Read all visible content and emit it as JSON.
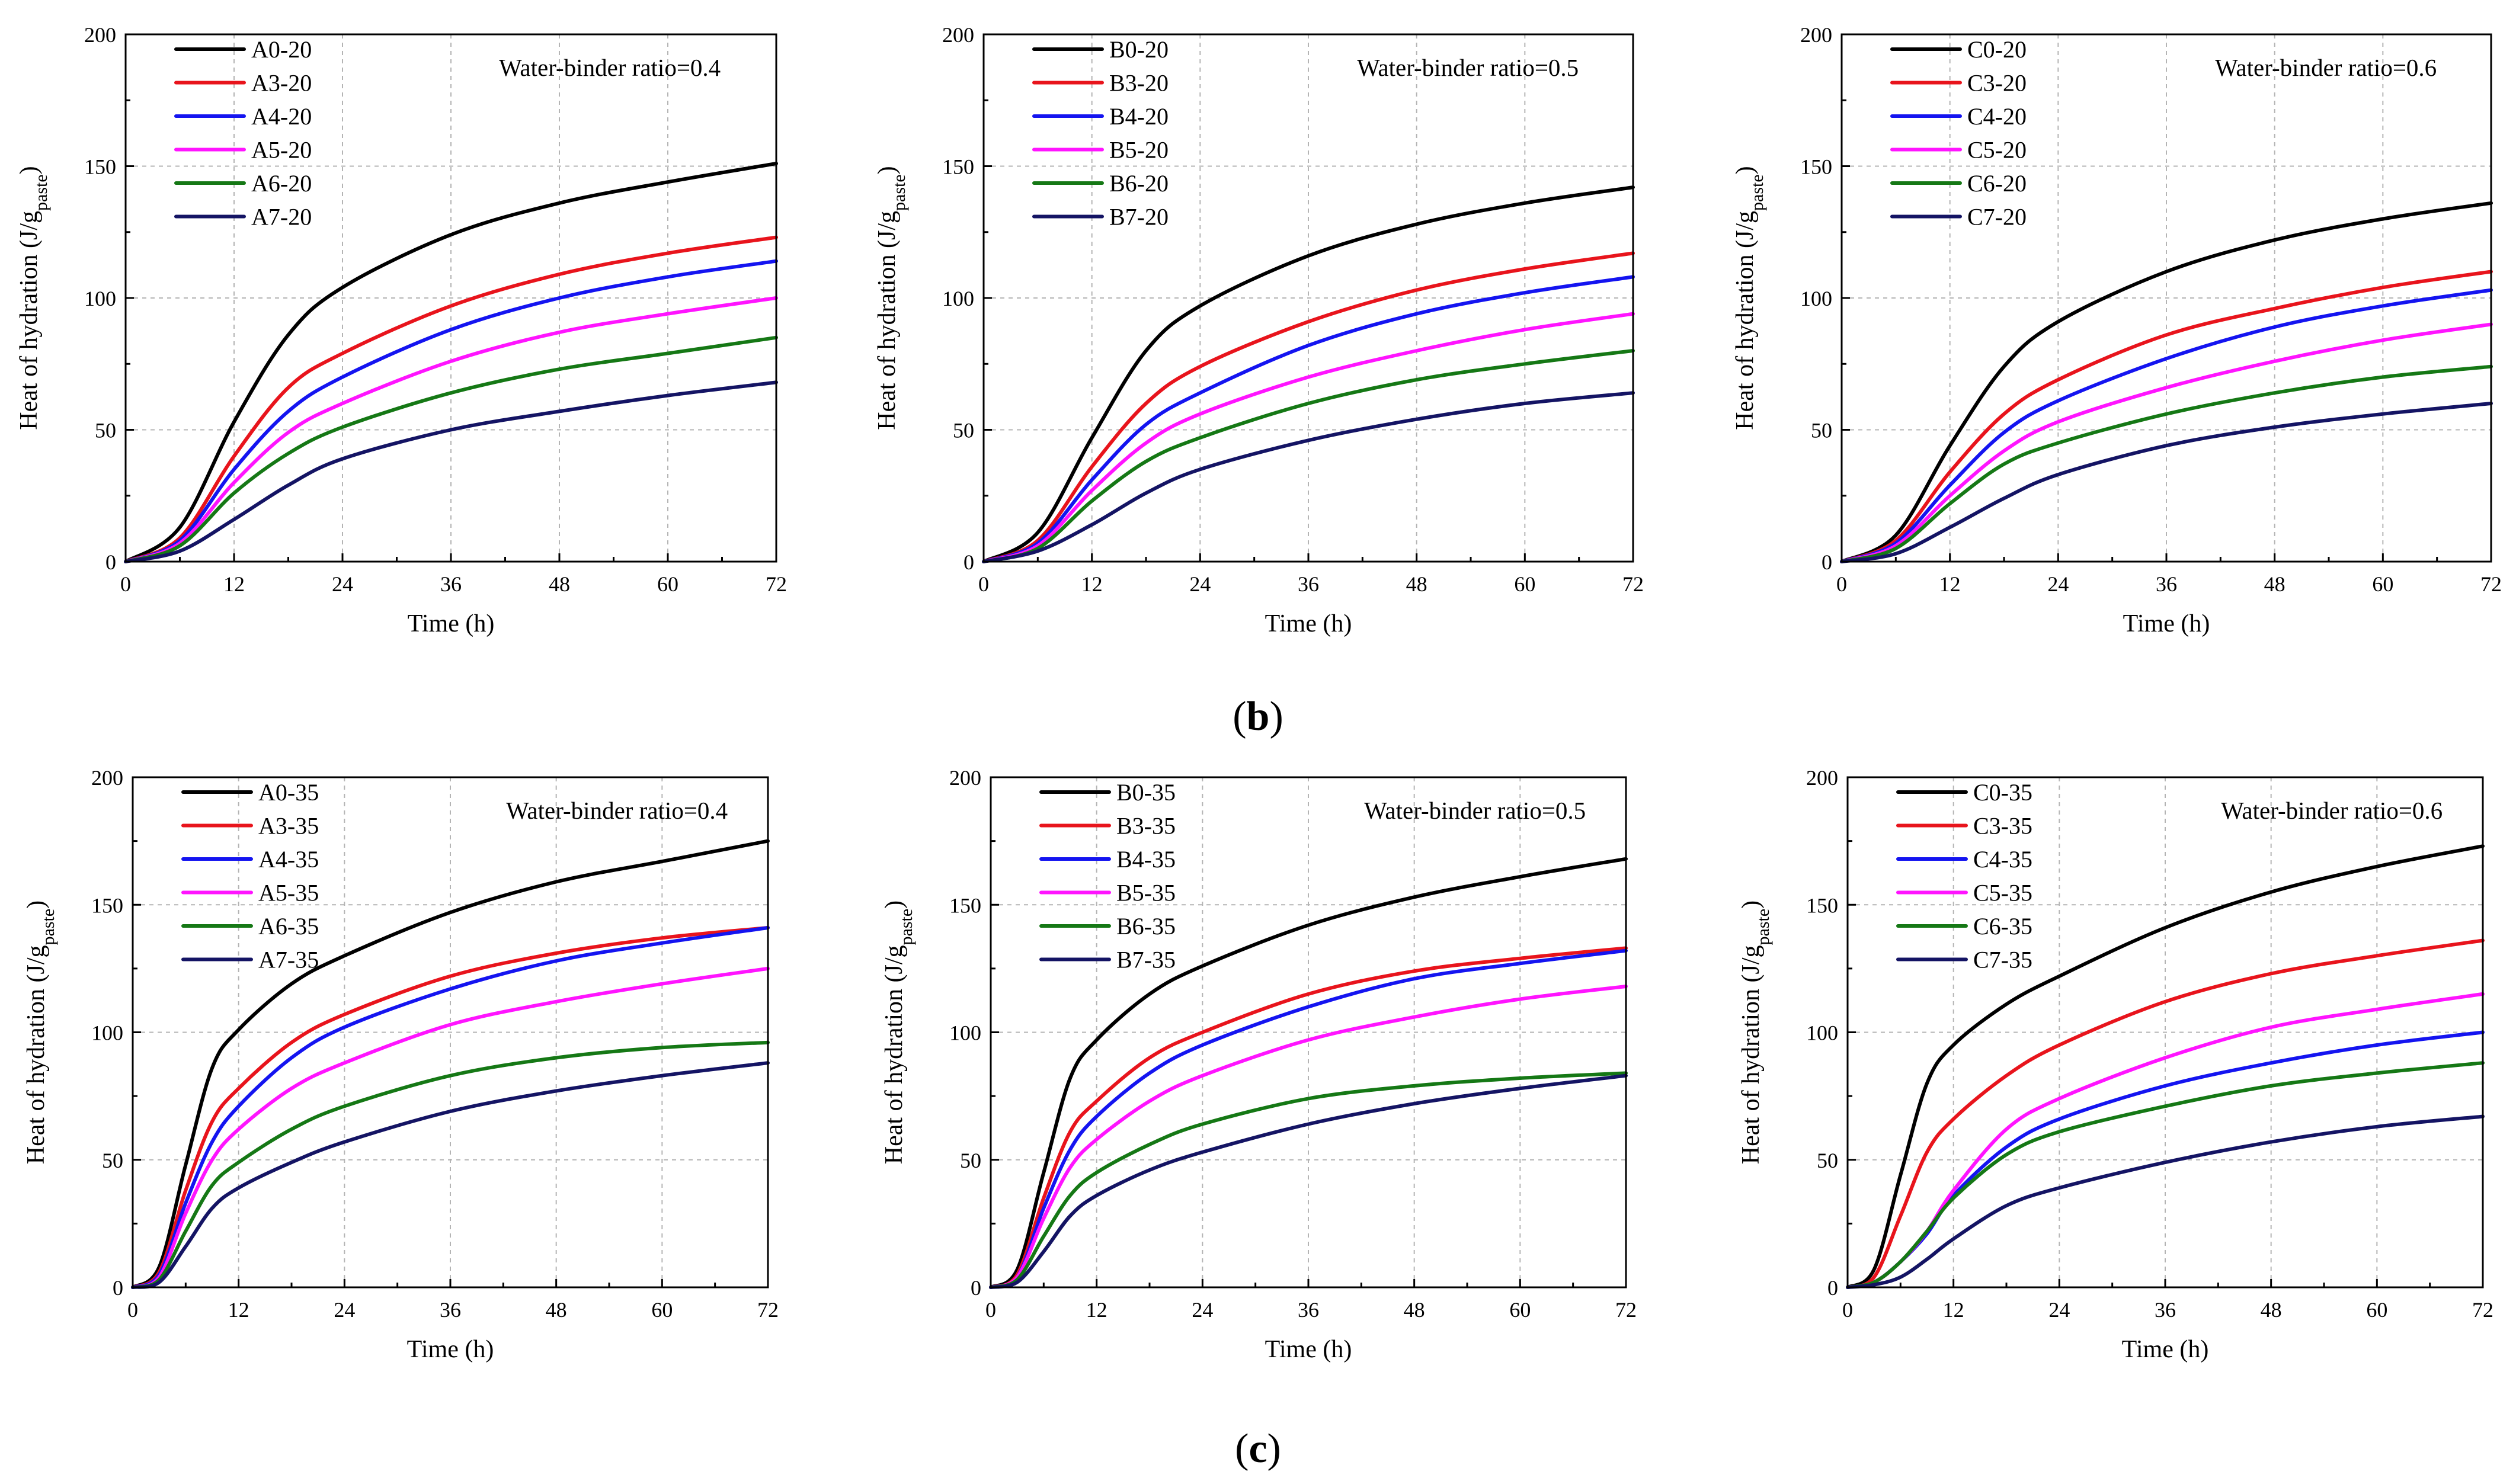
{
  "captions": [
    {
      "open": "(",
      "letter": "b",
      "close": ")"
    },
    {
      "open": "(",
      "letter": "c",
      "close": ")"
    }
  ],
  "colors": {
    "black": "#000000",
    "red": "#e8141c",
    "blue": "#1414f0",
    "magenta": "#ff14ff",
    "green": "#157815",
    "navy": "#141464"
  },
  "chart_data": [
    {
      "type": "line",
      "xlabel": "Time (h)",
      "ylabel_main": "Heat of hydration (J/g",
      "ylabel_sub": "paste",
      "ylabel_close": ")",
      "xlim": [
        0,
        72
      ],
      "ylim": [
        0,
        200
      ],
      "xticks": [
        "0",
        "12",
        "24",
        "36",
        "48",
        "60",
        "72"
      ],
      "yticks": [
        "0",
        "50",
        "100",
        "150",
        "200"
      ],
      "annotation": "Water-binder ratio=0.4",
      "grid": true,
      "legend": "top-left",
      "x": [
        0,
        6,
        12,
        18,
        24,
        36,
        48,
        60,
        72
      ],
      "series": [
        {
          "name": "A0-20",
          "color": "black",
          "values": [
            0,
            13,
            53,
            86,
            104,
            124,
            136,
            144,
            151
          ]
        },
        {
          "name": "A3-20",
          "color": "red",
          "values": [
            0,
            9,
            40,
            66,
            79,
            97,
            109,
            117,
            123
          ]
        },
        {
          "name": "A4-20",
          "color": "blue",
          "values": [
            0,
            8,
            35,
            57,
            70,
            88,
            100,
            108,
            114
          ]
        },
        {
          "name": "A5-20",
          "color": "magenta",
          "values": [
            0,
            7,
            30,
            49,
            60,
            76,
            87,
            94,
            100
          ]
        },
        {
          "name": "A6-20",
          "color": "green",
          "values": [
            0,
            6,
            26,
            41,
            51,
            64,
            73,
            79,
            85
          ]
        },
        {
          "name": "A7-20",
          "color": "navy",
          "values": [
            0,
            4,
            16,
            29,
            39,
            50,
            57,
            63,
            68
          ]
        }
      ]
    },
    {
      "type": "line",
      "xlabel": "Time (h)",
      "ylabel_main": "Heat of hydration (J/g",
      "ylabel_sub": "paste",
      "ylabel_close": ")",
      "xlim": [
        0,
        72
      ],
      "ylim": [
        0,
        200
      ],
      "xticks": [
        "0",
        "12",
        "24",
        "36",
        "48",
        "60",
        "72"
      ],
      "yticks": [
        "0",
        "50",
        "100",
        "150",
        "200"
      ],
      "annotation": "Water-binder ratio=0.5",
      "grid": true,
      "legend": "top-left",
      "x": [
        0,
        6,
        12,
        18,
        24,
        36,
        48,
        60,
        72
      ],
      "series": [
        {
          "name": "B0-20",
          "color": "black",
          "values": [
            0,
            11,
            47,
            80,
            97,
            116,
            128,
            136,
            142
          ]
        },
        {
          "name": "B3-20",
          "color": "red",
          "values": [
            0,
            8,
            36,
            60,
            74,
            91,
            103,
            111,
            117
          ]
        },
        {
          "name": "B4-20",
          "color": "blue",
          "values": [
            0,
            7,
            31,
            52,
            64,
            82,
            94,
            102,
            108
          ]
        },
        {
          "name": "B5-20",
          "color": "magenta",
          "values": [
            0,
            6,
            27,
            45,
            56,
            70,
            80,
            88,
            94
          ]
        },
        {
          "name": "B6-20",
          "color": "green",
          "values": [
            0,
            5,
            23,
            38,
            47,
            60,
            69,
            75,
            80
          ]
        },
        {
          "name": "B7-20",
          "color": "navy",
          "values": [
            0,
            4,
            14,
            26,
            35,
            46,
            54,
            60,
            64
          ]
        }
      ]
    },
    {
      "type": "line",
      "xlabel": "Time (h)",
      "ylabel_main": "Heat of hydration (J/g",
      "ylabel_sub": "paste",
      "ylabel_close": ")",
      "xlim": [
        0,
        72
      ],
      "ylim": [
        0,
        200
      ],
      "xticks": [
        "0",
        "12",
        "24",
        "36",
        "48",
        "60",
        "72"
      ],
      "yticks": [
        "0",
        "50",
        "100",
        "150",
        "200"
      ],
      "annotation": "Water-binder ratio=0.6",
      "grid": true,
      "legend": "top-left",
      "x": [
        0,
        6,
        12,
        18,
        24,
        36,
        48,
        60,
        72
      ],
      "series": [
        {
          "name": "C0-20",
          "color": "black",
          "values": [
            0,
            10,
            44,
            74,
            91,
            110,
            122,
            130,
            136
          ]
        },
        {
          "name": "C3-20",
          "color": "red",
          "values": [
            0,
            8,
            34,
            56,
            69,
            86,
            96,
            104,
            110
          ]
        },
        {
          "name": "C4-20",
          "color": "blue",
          "values": [
            0,
            7,
            29,
            49,
            61,
            77,
            89,
            97,
            103
          ]
        },
        {
          "name": "C5-20",
          "color": "magenta",
          "values": [
            0,
            6,
            25,
            42,
            53,
            66,
            76,
            84,
            90
          ]
        },
        {
          "name": "C6-20",
          "color": "green",
          "values": [
            0,
            5,
            22,
            37,
            45,
            56,
            64,
            70,
            74
          ]
        },
        {
          "name": "C7-20",
          "color": "navy",
          "values": [
            0,
            3,
            13,
            24,
            33,
            44,
            51,
            56,
            60
          ]
        }
      ]
    },
    {
      "type": "line",
      "xlabel": "Time (h)",
      "ylabel_main": "Heat of hydration (J/g",
      "ylabel_sub": "paste",
      "ylabel_close": ")",
      "xlim": [
        0,
        72
      ],
      "ylim": [
        0,
        200
      ],
      "xticks": [
        "0",
        "12",
        "24",
        "36",
        "48",
        "60",
        "72"
      ],
      "yticks": [
        "0",
        "50",
        "100",
        "150",
        "200"
      ],
      "annotation": "Water-binder ratio=0.4",
      "grid": true,
      "legend": "top-left",
      "x": [
        0,
        3,
        6,
        9,
        12,
        18,
        24,
        36,
        48,
        60,
        72
      ],
      "series": [
        {
          "name": "A0-35",
          "color": "black",
          "values": [
            0,
            8,
            48,
            86,
            101,
            119,
            130,
            147,
            159,
            167,
            175
          ]
        },
        {
          "name": "A3-35",
          "color": "red",
          "values": [
            0,
            6,
            38,
            65,
            78,
            96,
            107,
            122,
            131,
            137,
            141
          ]
        },
        {
          "name": "A4-35",
          "color": "blue",
          "values": [
            0,
            5,
            33,
            57,
            71,
            90,
            102,
            117,
            128,
            135,
            141
          ]
        },
        {
          "name": "A5-35",
          "color": "magenta",
          "values": [
            0,
            4,
            29,
            50,
            62,
            78,
            88,
            103,
            112,
            119,
            125
          ]
        },
        {
          "name": "A6-35",
          "color": "green",
          "values": [
            0,
            3,
            22,
            40,
            49,
            62,
            71,
            83,
            90,
            94,
            96
          ]
        },
        {
          "name": "A7-35",
          "color": "navy",
          "values": [
            0,
            2,
            16,
            31,
            39,
            49,
            57,
            69,
            77,
            83,
            88
          ]
        }
      ]
    },
    {
      "type": "line",
      "xlabel": "Time (h)",
      "ylabel_main": "Heat of hydration (J/g",
      "ylabel_sub": "paste",
      "ylabel_close": ")",
      "xlim": [
        0,
        72
      ],
      "ylim": [
        0,
        200
      ],
      "xticks": [
        "0",
        "12",
        "24",
        "36",
        "48",
        "60",
        "72"
      ],
      "yticks": [
        "0",
        "50",
        "100",
        "150",
        "200"
      ],
      "annotation": "Water-binder ratio=0.5",
      "grid": true,
      "legend": "top-left",
      "x": [
        0,
        3,
        6,
        9,
        12,
        18,
        24,
        36,
        48,
        60,
        72
      ],
      "series": [
        {
          "name": "B0-35",
          "color": "black",
          "values": [
            0,
            7,
            45,
            82,
            97,
            115,
            126,
            142,
            153,
            161,
            168
          ]
        },
        {
          "name": "B3-35",
          "color": "red",
          "values": [
            0,
            5,
            35,
            61,
            73,
            90,
            100,
            115,
            124,
            129,
            133
          ]
        },
        {
          "name": "B4-35",
          "color": "blue",
          "values": [
            0,
            4,
            31,
            54,
            67,
            84,
            95,
            110,
            121,
            127,
            132
          ]
        },
        {
          "name": "B5-35",
          "color": "magenta",
          "values": [
            0,
            4,
            27,
            47,
            58,
            73,
            83,
            97,
            106,
            113,
            118
          ]
        },
        {
          "name": "B6-35",
          "color": "green",
          "values": [
            0,
            3,
            20,
            36,
            45,
            56,
            64,
            74,
            79,
            82,
            84
          ]
        },
        {
          "name": "B7-35",
          "color": "navy",
          "values": [
            0,
            2,
            14,
            28,
            36,
            46,
            53,
            64,
            72,
            78,
            83
          ]
        }
      ]
    },
    {
      "type": "line",
      "xlabel": "Time (h)",
      "ylabel_main": "Heat of hydration (J/g",
      "ylabel_sub": "paste",
      "ylabel_close": ")",
      "xlim": [
        0,
        72
      ],
      "ylim": [
        0,
        200
      ],
      "xticks": [
        "0",
        "12",
        "24",
        "36",
        "48",
        "60",
        "72"
      ],
      "yticks": [
        "0",
        "50",
        "100",
        "150",
        "200"
      ],
      "annotation": "Water-binder ratio=0.6",
      "grid": true,
      "legend": "top-left",
      "x": [
        0,
        3,
        6,
        9,
        12,
        18,
        24,
        36,
        48,
        60,
        72
      ],
      "series": [
        {
          "name": "C0-35",
          "color": "black",
          "values": [
            0,
            7,
            44,
            80,
            95,
            111,
            122,
            141,
            155,
            165,
            173
          ]
        },
        {
          "name": "C3-35",
          "color": "red",
          "values": [
            0,
            4,
            28,
            53,
            66,
            83,
            95,
            112,
            123,
            130,
            136
          ]
        },
        {
          "name": "C4-35",
          "color": "blue",
          "values": [
            0,
            2,
            10,
            21,
            36,
            55,
            66,
            79,
            88,
            95,
            100
          ]
        },
        {
          "name": "C5-35",
          "color": "magenta",
          "values": [
            0,
            2,
            10,
            22,
            38,
            62,
            74,
            90,
            102,
            109,
            115
          ]
        },
        {
          "name": "C6-35",
          "color": "green",
          "values": [
            0,
            2,
            10,
            22,
            35,
            52,
            61,
            71,
            79,
            84,
            88
          ]
        },
        {
          "name": "C7-35",
          "color": "navy",
          "values": [
            0,
            1,
            4,
            11,
            19,
            32,
            39,
            49,
            57,
            63,
            67
          ]
        }
      ]
    }
  ]
}
